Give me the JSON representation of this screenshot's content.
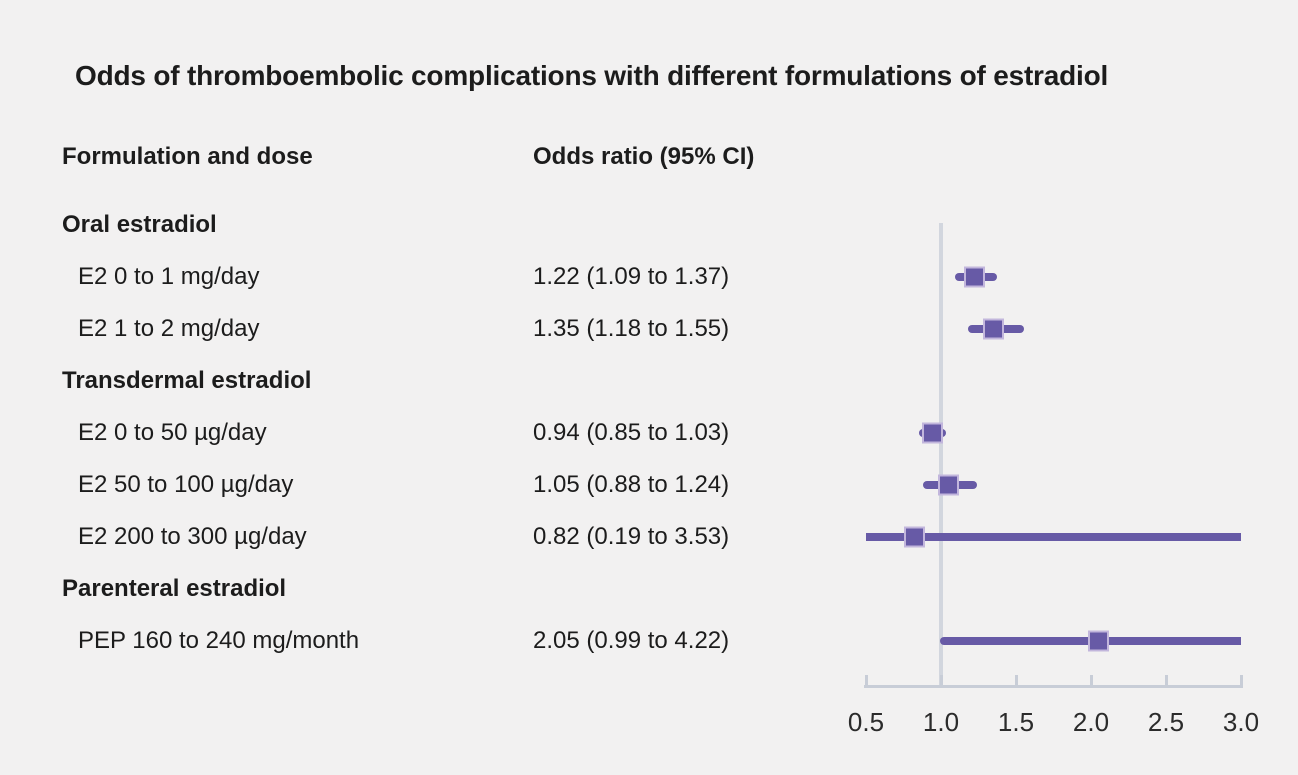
{
  "chart_data": {
    "type": "forest",
    "title": "Odds of thromboembolic complications with different formulations of estradiol",
    "columns": {
      "label": "Formulation and dose",
      "value": "Odds ratio (95% CI)"
    },
    "xlim": [
      0.5,
      3.0
    ],
    "reference_line": 1.0,
    "ticks": [
      "0.5",
      "1.0",
      "1.5",
      "2.0",
      "2.5",
      "3.0"
    ],
    "tick_values": [
      0.5,
      1.0,
      1.5,
      2.0,
      2.5,
      3.0
    ],
    "grid": false,
    "legend": "none",
    "rows": [
      {
        "type": "group",
        "label": "Oral estradiol"
      },
      {
        "type": "item",
        "label": "E2 0 to 1 mg/day",
        "value_text": "1.22 (1.09 to 1.37)",
        "or": 1.22,
        "lo": 1.09,
        "hi": 1.37
      },
      {
        "type": "item",
        "label": "E2 1 to 2 mg/day",
        "value_text": "1.35 (1.18 to 1.55)",
        "or": 1.35,
        "lo": 1.18,
        "hi": 1.55
      },
      {
        "type": "group",
        "label": "Transdermal estradiol"
      },
      {
        "type": "item",
        "label": "E2 0 to 50 µg/day",
        "value_text": "0.94 (0.85 to 1.03)",
        "or": 0.94,
        "lo": 0.85,
        "hi": 1.03
      },
      {
        "type": "item",
        "label": "E2 50 to 100 µg/day",
        "value_text": "1.05 (0.88 to 1.24)",
        "or": 1.05,
        "lo": 0.88,
        "hi": 1.24
      },
      {
        "type": "item",
        "label": "E2 200 to 300 µg/day",
        "value_text": "0.82 (0.19 to 3.53)",
        "or": 0.82,
        "lo": 0.19,
        "hi": 3.53
      },
      {
        "type": "group",
        "label": "Parenteral estradiol"
      },
      {
        "type": "item",
        "label": "PEP 160 to 240 mg/month",
        "value_text": "2.05 (0.99 to 4.22)",
        "or": 2.05,
        "lo": 0.99,
        "hi": 4.22
      }
    ],
    "colors": {
      "marker": "#675aa6",
      "marker_border": "#c2b6dc",
      "ci_line": "#675aa6",
      "axis": "#c8cdd7",
      "reference": "#d2d6de",
      "background": "#f2f1f1",
      "text": "#1c1c1c"
    }
  }
}
